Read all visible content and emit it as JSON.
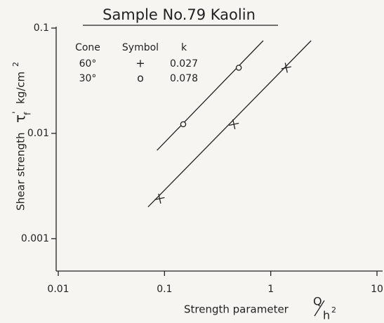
{
  "chart_data": {
    "type": "scatter",
    "title": "Sample No.79 Kaolin",
    "xlabel": "Strength parameter",
    "xlabel_num": "Q",
    "xlabel_den": "h",
    "xlabel_den_sup": "2",
    "ylabel": "Shear strength",
    "ylabel_symbol": "τ",
    "ylabel_sup": "'",
    "ylabel_sub": "f",
    "ylabel_unit": "kg/cm",
    "ylabel_unit_sup": "2",
    "xscale": "log",
    "yscale": "log",
    "xlim": [
      0.01,
      10
    ],
    "ylim": [
      0.0005,
      0.1
    ],
    "xticks": [
      0.01,
      0.1,
      1,
      10
    ],
    "yticks": [
      0.001,
      0.01,
      0.1
    ],
    "legend_headers": [
      "Cone",
      "Symbol",
      "k"
    ],
    "series": [
      {
        "name": "60°",
        "marker": "+",
        "k": "0.027",
        "color": "#222222",
        "x": [
          0.09,
          0.45,
          1.4
        ],
        "values": [
          0.0024,
          0.0122,
          0.042
        ],
        "fit_x": [
          0.07,
          2.4
        ],
        "fit_y": [
          0.002,
          0.076
        ]
      },
      {
        "name": "30°",
        "marker": "o",
        "k": "0.078",
        "color": "#222222",
        "x": [
          0.15,
          0.5
        ],
        "values": [
          0.0122,
          0.042
        ],
        "fit_x": [
          0.085,
          0.85
        ],
        "fit_y": [
          0.0069,
          0.076
        ]
      }
    ]
  }
}
